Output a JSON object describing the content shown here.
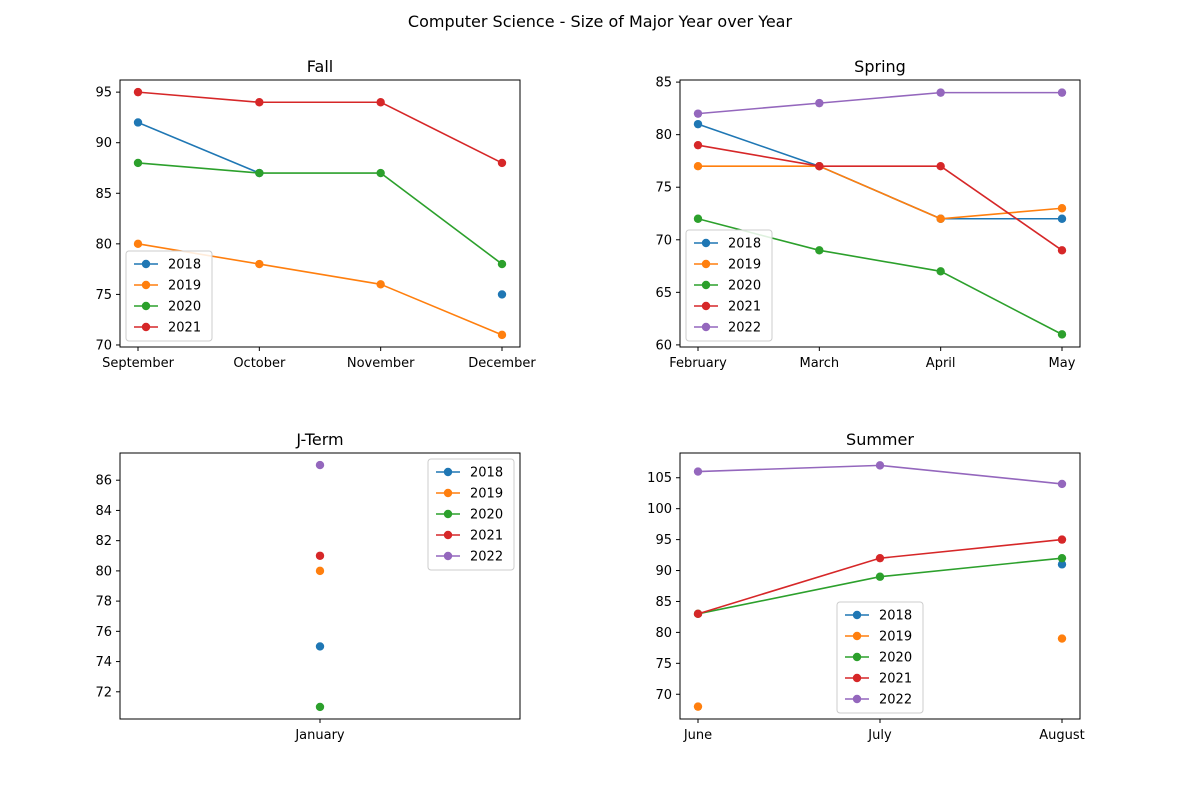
{
  "figure_title": "Computer Science - Size of Major Year over Year",
  "colors": {
    "2018": "#1f77b4",
    "2019": "#ff7f0e",
    "2020": "#2ca02c",
    "2021": "#d62728",
    "2022": "#9467bd"
  },
  "chart_data": [
    {
      "type": "line",
      "title": "Fall",
      "categories": [
        "September",
        "October",
        "November",
        "December"
      ],
      "ylim": [
        69.8,
        96.2
      ],
      "yticks": [
        70,
        75,
        80,
        85,
        90,
        95
      ],
      "legend": "lower-left",
      "series": [
        {
          "name": "2018",
          "values": [
            92,
            87,
            null,
            75
          ]
        },
        {
          "name": "2019",
          "values": [
            80,
            78,
            76,
            71
          ]
        },
        {
          "name": "2020",
          "values": [
            88,
            87,
            87,
            78
          ]
        },
        {
          "name": "2021",
          "values": [
            95,
            94,
            94,
            88
          ]
        }
      ]
    },
    {
      "type": "line",
      "title": "Spring",
      "categories": [
        "February",
        "March",
        "April",
        "May"
      ],
      "ylim": [
        59.8,
        85.2
      ],
      "yticks": [
        60,
        65,
        70,
        75,
        80,
        85
      ],
      "legend": "lower-left",
      "series": [
        {
          "name": "2018",
          "values": [
            81,
            77,
            72,
            72
          ]
        },
        {
          "name": "2019",
          "values": [
            77,
            77,
            72,
            73
          ]
        },
        {
          "name": "2020",
          "values": [
            72,
            69,
            67,
            61
          ]
        },
        {
          "name": "2021",
          "values": [
            79,
            77,
            77,
            69
          ]
        },
        {
          "name": "2022",
          "values": [
            82,
            83,
            84,
            84
          ]
        }
      ]
    },
    {
      "type": "scatter",
      "title": "J-Term",
      "categories": [
        "January"
      ],
      "ylim": [
        70.2,
        87.8
      ],
      "yticks": [
        72,
        74,
        76,
        78,
        80,
        82,
        84,
        86
      ],
      "legend": "upper-right",
      "series": [
        {
          "name": "2018",
          "values": [
            75
          ]
        },
        {
          "name": "2019",
          "values": [
            80
          ]
        },
        {
          "name": "2020",
          "values": [
            71
          ]
        },
        {
          "name": "2021",
          "values": [
            81
          ]
        },
        {
          "name": "2022",
          "values": [
            87
          ]
        }
      ]
    },
    {
      "type": "line",
      "title": "Summer",
      "categories": [
        "June",
        "July",
        "August"
      ],
      "ylim": [
        66.0,
        109.0
      ],
      "yticks": [
        70,
        75,
        80,
        85,
        90,
        95,
        100,
        105
      ],
      "legend": "lower-center",
      "series": [
        {
          "name": "2018",
          "values": [
            null,
            null,
            91
          ]
        },
        {
          "name": "2019",
          "values": [
            68,
            null,
            79
          ]
        },
        {
          "name": "2020",
          "values": [
            83,
            89,
            92
          ]
        },
        {
          "name": "2021",
          "values": [
            83,
            92,
            95
          ]
        },
        {
          "name": "2022",
          "values": [
            106,
            107,
            104
          ]
        }
      ]
    }
  ]
}
